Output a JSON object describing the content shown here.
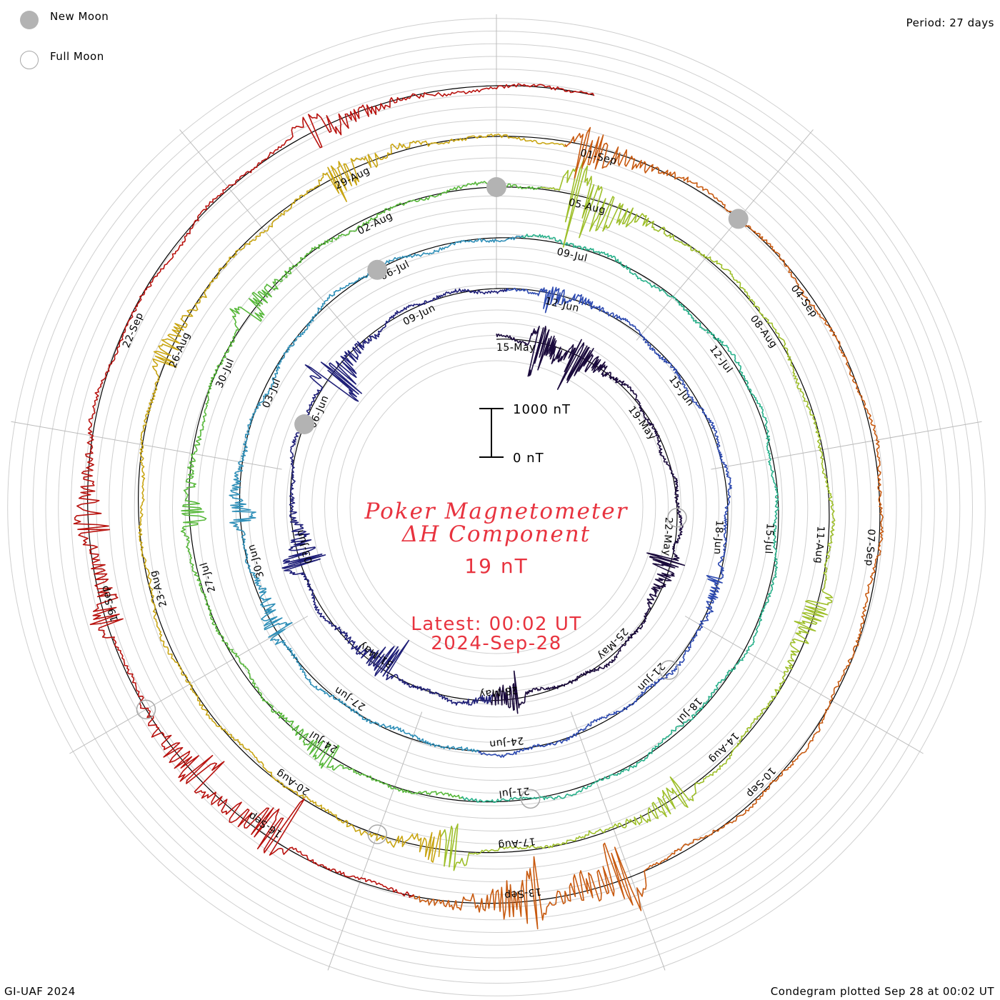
{
  "legend": {
    "new_moon_label": "New Moon",
    "full_moon_label": "Full Moon",
    "new_moon_color": "#b3b3b3",
    "full_moon_color": "#a8a8a8"
  },
  "header": {
    "period": "Period: 27 days"
  },
  "footer": {
    "credit": "GI-UAF 2024",
    "plotted": "Condegram plotted Sep 28 at 00:02 UT"
  },
  "center": {
    "title_line1": "Poker Magnetometer",
    "title_line2": "ΔH Component",
    "value_readout": "19 nT",
    "latest": "Latest: 00:02 UT",
    "latest_date": "2024-Sep-28",
    "scale_top": "1000 nT",
    "scale_bottom": "0 nT",
    "text_color": "#e8333f"
  },
  "chart_data": {
    "type": "line",
    "subtype": "spiral condegram",
    "period_days": 27,
    "start_date": "2024-May-15",
    "end_date": "2024-Sep-28",
    "scale_bar_nT": [
      0,
      1000
    ],
    "turn_labels": [
      [
        "15-May",
        "19-May",
        "22-May",
        "25-May",
        "28-May",
        "31-May",
        "03-Jun",
        "06-Jun",
        "09-Jun"
      ],
      [
        "12-Jun",
        "15-Jun",
        "18-Jun",
        "21-Jun",
        "24-Jun",
        "27-Jun",
        "30-Jun",
        "03-Jul",
        "06-Jul"
      ],
      [
        "09-Jul",
        "12-Jul",
        "15-Jul",
        "18-Jul",
        "21-Jul",
        "24-Jul",
        "27-Jul",
        "30-Jul",
        "02-Aug"
      ],
      [
        "05-Aug",
        "08-Aug",
        "11-Aug",
        "14-Aug",
        "17-Aug",
        "20-Aug",
        "23-Aug",
        "26-Aug",
        "29-Aug"
      ],
      [
        "01-Sep",
        "04-Sep",
        "07-Sep",
        "10-Sep",
        "13-Sep",
        "16-Sep",
        "19-Sep",
        "22-Sep"
      ]
    ],
    "new_moon_dates": [
      "06-Jun",
      "06-Jul",
      "04-Aug",
      "03-Sep"
    ],
    "full_moon_dates": [
      "22-May",
      "21-Jun",
      "21-Jul",
      "19-Aug",
      "18-Sep"
    ],
    "series_colors": [
      "#1a0a3c",
      "#1f1f78",
      "#2c49b0",
      "#2f8fb8",
      "#27b08a",
      "#57b83a",
      "#9ebf2a",
      "#c9a512",
      "#c85a10",
      "#b8120e"
    ],
    "disturbance_events": [
      {
        "date": "16-May",
        "peak_nT": 650
      },
      {
        "date": "17-May",
        "peak_nT": 600
      },
      {
        "date": "23-May",
        "peak_nT": 380
      },
      {
        "date": "28-May",
        "peak_nT": 420
      },
      {
        "date": "31-May",
        "peak_nT": 480
      },
      {
        "date": "03-Jun",
        "peak_nT": 560
      },
      {
        "date": "07-Jun",
        "peak_nT": 800
      },
      {
        "date": "12-Jun",
        "peak_nT": 300
      },
      {
        "date": "19-Jun",
        "peak_nT": 250
      },
      {
        "date": "29-Jun",
        "peak_nT": 330
      },
      {
        "date": "01-Jul",
        "peak_nT": 300
      },
      {
        "date": "24-Jul",
        "peak_nT": 290
      },
      {
        "date": "28-Jul",
        "peak_nT": 310
      },
      {
        "date": "31-Jul",
        "peak_nT": 350
      },
      {
        "date": "05-Aug",
        "peak_nT": 1100
      },
      {
        "date": "12-Aug",
        "peak_nT": 420
      },
      {
        "date": "15-Aug",
        "peak_nT": 400
      },
      {
        "date": "18-Aug",
        "peak_nT": 500
      },
      {
        "date": "26-Aug",
        "peak_nT": 300
      },
      {
        "date": "29-Aug",
        "peak_nT": 420
      },
      {
        "date": "01-Sep",
        "peak_nT": 480
      },
      {
        "date": "12-Sep",
        "peak_nT": 900
      },
      {
        "date": "13-Sep",
        "peak_nT": 720
      },
      {
        "date": "16-Sep",
        "peak_nT": 650
      },
      {
        "date": "17-Sep",
        "peak_nT": 550
      },
      {
        "date": "19-Sep",
        "peak_nT": 420
      },
      {
        "date": "20-Sep",
        "peak_nT": 380
      },
      {
        "date": "25-Sep",
        "peak_nT": 450
      }
    ],
    "grid": true,
    "legend_position": "top-left"
  }
}
